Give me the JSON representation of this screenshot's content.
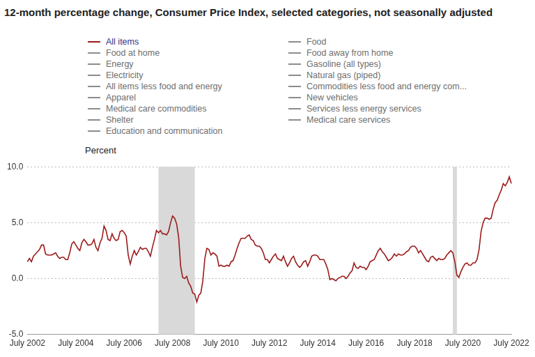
{
  "chart_data": {
    "type": "line",
    "title": "12-month percentage change, Consumer Price Index, selected categories, not seasonally adjusted",
    "y_label": "Percent",
    "legend": "top",
    "grid": true,
    "categories": [
      "July 2002",
      null,
      null,
      null,
      null,
      null,
      null,
      null,
      null,
      null,
      null,
      null,
      null,
      null,
      null,
      null,
      null,
      null,
      null,
      null,
      null,
      null,
      null,
      null,
      "July 2004",
      null,
      null,
      null,
      null,
      null,
      null,
      null,
      null,
      null,
      null,
      null,
      null,
      null,
      null,
      null,
      null,
      null,
      null,
      null,
      null,
      null,
      null,
      null,
      "July 2006",
      null,
      null,
      null,
      null,
      null,
      null,
      null,
      null,
      null,
      null,
      null,
      null,
      null,
      null,
      null,
      null,
      null,
      null,
      null,
      null,
      null,
      null,
      null,
      "July 2008",
      null,
      null,
      null,
      null,
      null,
      null,
      null,
      null,
      null,
      null,
      null,
      null,
      null,
      null,
      null,
      null,
      null,
      null,
      null,
      null,
      null,
      null,
      null,
      "July 2010",
      null,
      null,
      null,
      null,
      null,
      null,
      null,
      null,
      null,
      null,
      null,
      null,
      null,
      null,
      null,
      null,
      null,
      null,
      null,
      null,
      null,
      null,
      null,
      "July 2012",
      null,
      null,
      null,
      null,
      null,
      null,
      null,
      null,
      null,
      null,
      null,
      null,
      null,
      null,
      null,
      null,
      null,
      null,
      null,
      null,
      null,
      null,
      null,
      "July 2014",
      null,
      null,
      null,
      null,
      null,
      null,
      null,
      null,
      null,
      null,
      null,
      null,
      null,
      null,
      null,
      null,
      null,
      null,
      null,
      null,
      null,
      null,
      null,
      "July 2016",
      null,
      null,
      null,
      null,
      null,
      null,
      null,
      null,
      null,
      null,
      null,
      null,
      null,
      null,
      null,
      null,
      null,
      null,
      null,
      null,
      null,
      null,
      null,
      "July 2018",
      null,
      null,
      null,
      null,
      null,
      null,
      null,
      null,
      null,
      null,
      null,
      null,
      null,
      null,
      null,
      null,
      null,
      null,
      null,
      null,
      null,
      null,
      null,
      "July 2020",
      null,
      null,
      null,
      null,
      null,
      null,
      null,
      null,
      null,
      null,
      null,
      null,
      null,
      null,
      null,
      null,
      null,
      null,
      null,
      null,
      null,
      null,
      null,
      "July 2022"
    ],
    "series": [
      {
        "name": "All items",
        "color": "#9b1b1b",
        "values": [
          1.5,
          1.8,
          1.5,
          2.0,
          2.2,
          2.4,
          2.6,
          3.0,
          3.0,
          2.2,
          2.1,
          2.1,
          2.1,
          2.2,
          2.3,
          2.0,
          1.8,
          1.9,
          1.9,
          1.7,
          1.7,
          2.3,
          3.1,
          3.3,
          3.0,
          2.7,
          2.5,
          3.2,
          3.5,
          3.3,
          3.0,
          3.0,
          3.1,
          3.5,
          2.8,
          2.5,
          3.2,
          3.6,
          4.7,
          4.3,
          3.5,
          3.4,
          4.0,
          3.6,
          3.4,
          3.5,
          4.2,
          4.3,
          4.1,
          3.8,
          2.1,
          1.3,
          2.0,
          2.5,
          2.1,
          2.4,
          2.8,
          2.6,
          2.7,
          2.7,
          2.4,
          2.0,
          2.8,
          3.5,
          4.3,
          4.1,
          4.3,
          4.0,
          4.0,
          3.9,
          4.2,
          5.0,
          5.6,
          5.4,
          4.9,
          3.7,
          1.1,
          0.1,
          0.0,
          0.2,
          -0.4,
          -0.7,
          -1.3,
          -1.4,
          -2.1,
          -1.5,
          -1.3,
          -0.2,
          1.8,
          2.7,
          2.6,
          2.1,
          2.3,
          2.2,
          2.0,
          1.1,
          1.2,
          1.1,
          1.1,
          1.2,
          1.1,
          1.5,
          1.6,
          2.1,
          2.7,
          3.2,
          3.6,
          3.6,
          3.6,
          3.8,
          3.9,
          3.5,
          3.4,
          3.0,
          2.9,
          2.9,
          2.7,
          2.3,
          1.7,
          1.7,
          1.4,
          1.7,
          2.0,
          2.2,
          1.8,
          1.7,
          1.6,
          2.0,
          1.5,
          1.1,
          1.4,
          1.8,
          2.0,
          1.5,
          1.2,
          1.0,
          1.2,
          1.5,
          1.6,
          1.1,
          1.5,
          2.0,
          2.1,
          2.1,
          2.0,
          1.7,
          1.7,
          1.7,
          1.3,
          0.8,
          -0.1,
          0.0,
          -0.1,
          -0.2,
          0.0,
          0.1,
          0.2,
          0.2,
          0.0,
          0.2,
          0.5,
          0.7,
          1.4,
          1.0,
          0.9,
          1.1,
          1.0,
          1.0,
          0.8,
          1.1,
          1.5,
          1.6,
          1.7,
          2.1,
          2.5,
          2.7,
          2.4,
          2.2,
          1.9,
          1.6,
          1.7,
          1.9,
          2.2,
          2.0,
          2.2,
          2.1,
          2.1,
          2.2,
          2.4,
          2.5,
          2.8,
          2.9,
          2.9,
          2.7,
          2.3,
          2.5,
          2.2,
          1.9,
          1.6,
          1.5,
          1.9,
          2.0,
          1.8,
          1.6,
          1.8,
          1.7,
          1.7,
          1.8,
          2.1,
          2.3,
          2.5,
          2.3,
          1.5,
          0.3,
          0.1,
          0.6,
          1.0,
          1.3,
          1.4,
          1.2,
          1.2,
          1.4,
          1.4,
          1.7,
          2.6,
          4.2,
          5.0,
          5.4,
          5.4,
          5.3,
          5.4,
          6.2,
          6.8,
          7.0,
          7.5,
          7.9,
          8.5,
          8.3,
          8.6,
          9.1,
          8.5
        ]
      }
    ],
    "inactive_series": [
      {
        "name": "Food",
        "color": "#8c8c8c"
      },
      {
        "name": "Food at home",
        "color": "#8c8c8c"
      },
      {
        "name": "Food away from home",
        "color": "#8c8c8c"
      },
      {
        "name": "Energy",
        "color": "#8c8c8c"
      },
      {
        "name": "Gasoline (all types)",
        "color": "#8c8c8c"
      },
      {
        "name": "Electricity",
        "color": "#8c8c8c"
      },
      {
        "name": "Natural gas (piped)",
        "color": "#8c8c8c"
      },
      {
        "name": "All items less food and energy",
        "color": "#8c8c8c"
      },
      {
        "name": "Commodities less food and energy com...",
        "color": "#8c8c8c"
      },
      {
        "name": "Apparel",
        "color": "#8c8c8c"
      },
      {
        "name": "New vehicles",
        "color": "#8c8c8c"
      },
      {
        "name": "Medical care commodities",
        "color": "#8c8c8c"
      },
      {
        "name": "Services less energy services",
        "color": "#8c8c8c"
      },
      {
        "name": "Shelter",
        "color": "#8c8c8c"
      },
      {
        "name": "Medical care services",
        "color": "#8c8c8c"
      },
      {
        "name": "Education and communication",
        "color": "#8c8c8c"
      }
    ],
    "shaded_periods": [
      {
        "start": 65,
        "end": 83
      },
      {
        "start": 211,
        "end": 213
      }
    ],
    "ylim": [
      -5,
      10
    ],
    "yticks": [
      {
        "value": -5,
        "label": "-5.0"
      },
      {
        "value": 0,
        "label": "0.0"
      },
      {
        "value": 5,
        "label": "5.0"
      },
      {
        "value": 10,
        "label": "10.0"
      }
    ]
  }
}
